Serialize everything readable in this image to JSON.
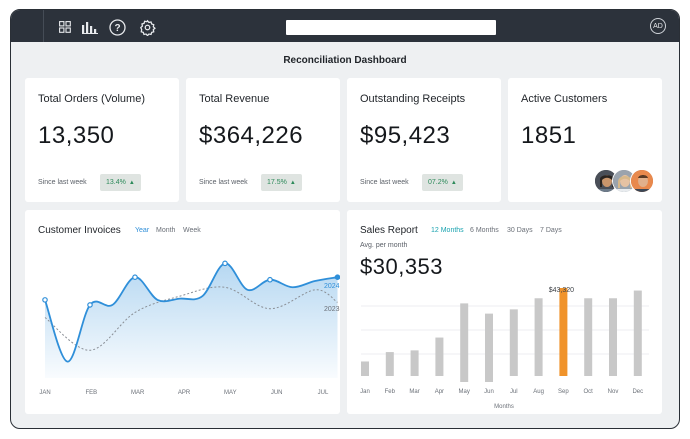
{
  "topbar": {
    "icons": [
      "grid-icon",
      "bar-chart-icon",
      "help-icon",
      "settings-icon"
    ],
    "search": {
      "value": "",
      "placeholder": ""
    },
    "user_initials": "AD"
  },
  "page_title": "Reconciliation Dashboard",
  "stats": [
    {
      "title": "Total Orders (Volume)",
      "value": "13,350",
      "since": "Since last week",
      "change": "13.4%"
    },
    {
      "title": "Total  Revenue",
      "value": "$364,226",
      "since": "Since last week",
      "change": "17.5%"
    },
    {
      "title": "Outstanding Receipts",
      "value": "$95,423",
      "since": "Since last week",
      "change": "07.2%"
    },
    {
      "title": "Active Customers",
      "value": "1851"
    }
  ],
  "invoices": {
    "title": "Customer Invoices",
    "tabs": [
      "Year",
      "Month",
      "Week"
    ],
    "active_tab": "Year"
  },
  "sales": {
    "title": "Sales Report",
    "tabs": [
      "12 Months",
      "6 Months",
      "30 Days",
      "7 Days"
    ],
    "active_tab": "12 Months",
    "sub": "Avg. per month",
    "value": "$30,353",
    "highlight_label": "$43,320",
    "xlabel": "Months"
  },
  "chart_data": [
    {
      "type": "area",
      "categories": [
        "JAN",
        "FEB",
        "MAR",
        "APR",
        "MAY",
        "JUN",
        "JUL"
      ],
      "series": [
        {
          "name": "2024",
          "x": [
            0,
            0.5,
            1,
            1.5,
            2,
            2.5,
            3,
            3.5,
            4,
            4.5,
            5,
            5.5,
            6,
            6.5
          ],
          "values": [
            62,
            13,
            58,
            58,
            80,
            62,
            63,
            65,
            91,
            70,
            78,
            72,
            77,
            80
          ]
        },
        {
          "name": "2023",
          "x": [
            0,
            1,
            2,
            3,
            4,
            5,
            6,
            6.5
          ],
          "values": [
            48,
            22,
            52,
            65,
            72,
            55,
            70,
            60
          ]
        }
      ],
      "colors": {
        "2024": "#2f8fd9",
        "2023": "#8a8f96"
      },
      "grid": false
    },
    {
      "type": "bar",
      "categories": [
        "Jan",
        "Feb",
        "Mar",
        "Apr",
        "May",
        "Jun",
        "Jul",
        "Aug",
        "Sep",
        "Oct",
        "Nov",
        "Dec"
      ],
      "values": [
        17,
        28,
        30,
        45,
        85,
        73,
        78,
        91,
        103,
        91,
        91,
        100
      ],
      "highlight_index": 8,
      "colors": {
        "bar": "#c8c8c8",
        "highlight": "#f0932b"
      },
      "grid": true
    }
  ]
}
